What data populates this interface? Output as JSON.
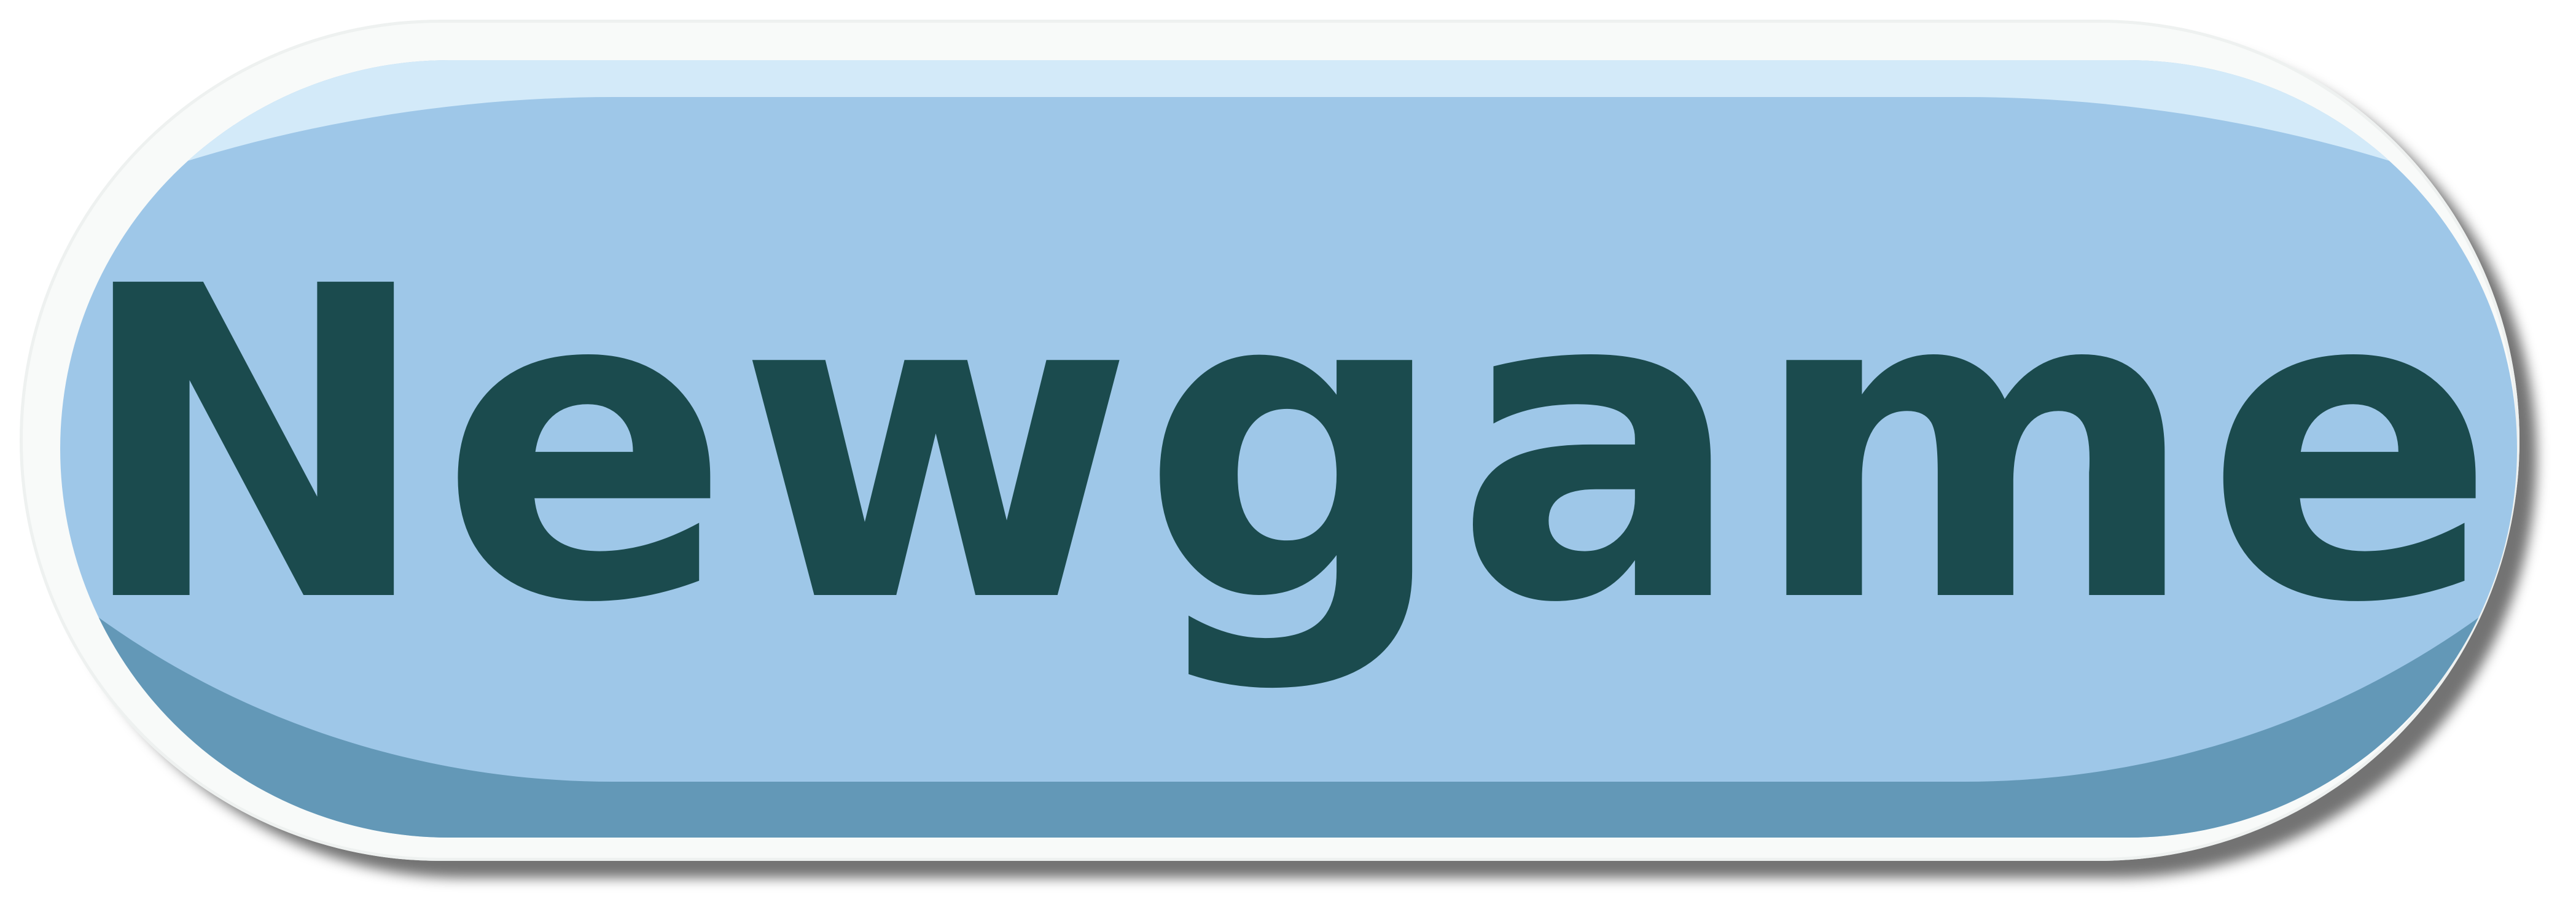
{
  "button": {
    "label": "Newgame"
  },
  "colors": {
    "face": "#9ec7e8",
    "face_highlight": "#d3eaf9",
    "face_shade": "#6398b7",
    "rim": "#f8faf9",
    "text": "#1b4b4e"
  }
}
